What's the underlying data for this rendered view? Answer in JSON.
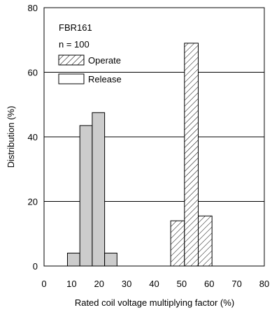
{
  "chart_data": {
    "type": "bar",
    "title": "",
    "annotations": [
      "FBR161",
      "n = 100"
    ],
    "xlabel": "Rated coil voltage multiplying factor (%)",
    "ylabel": "Distribution (%)",
    "xlim": [
      0,
      80
    ],
    "ylim": [
      0,
      80
    ],
    "xticks": [
      0,
      10,
      20,
      30,
      40,
      50,
      60,
      70,
      80
    ],
    "yticks": [
      0,
      20,
      40,
      60,
      80
    ],
    "grid": "horizontal at 20, 40, 60",
    "legend_position": "top-left",
    "series": [
      {
        "name": "Operate",
        "pattern": "hatched",
        "bins": [
          {
            "x0": 46,
            "x1": 51,
            "value": 14
          },
          {
            "x0": 51,
            "x1": 56,
            "value": 69
          },
          {
            "x0": 56,
            "x1": 61,
            "value": 15.5
          }
        ]
      },
      {
        "name": "Release",
        "pattern": "plain",
        "bins": [
          {
            "x0": 8.5,
            "x1": 13,
            "value": 4
          },
          {
            "x0": 13,
            "x1": 17.5,
            "value": 43.5
          },
          {
            "x0": 17.5,
            "x1": 22,
            "value": 47.5
          },
          {
            "x0": 22,
            "x1": 26.5,
            "value": 4
          }
        ]
      }
    ],
    "colors": {
      "release_fill": "#cccccc",
      "operate_fill": "#ffffff",
      "stroke": "#000000"
    }
  }
}
